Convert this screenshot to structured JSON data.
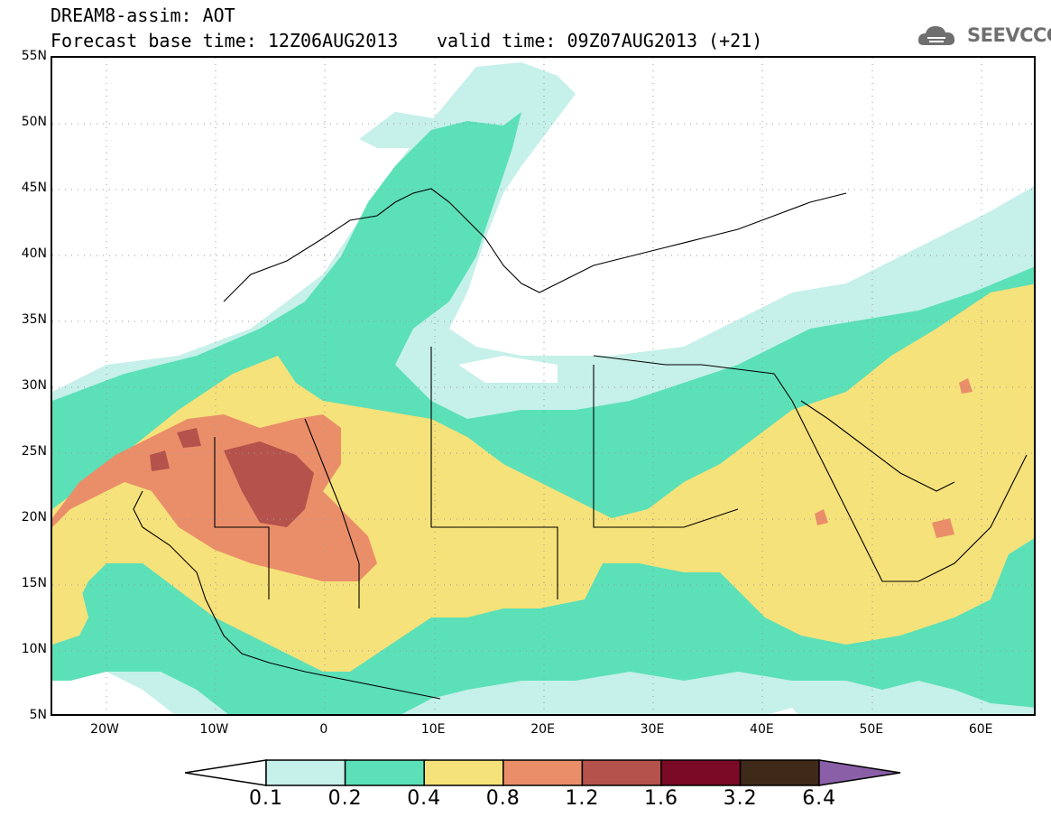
{
  "header": {
    "title": "DREAM8-assim: AOT",
    "base_time": "Forecast base time: 12Z06AUG2013",
    "valid_time": "valid time: 09Z07AUG2013 (+21)"
  },
  "logo": {
    "text": "SEEVCCC",
    "icon": "cloud-icon",
    "color": "#6f6f6f"
  },
  "map": {
    "lat_labels": [
      "55N",
      "50N",
      "45N",
      "40N",
      "35N",
      "30N",
      "25N",
      "20N",
      "15N",
      "10N",
      "5N"
    ],
    "lon_labels": [
      "20W",
      "10W",
      "0",
      "10E",
      "20E",
      "30E",
      "40E",
      "50E",
      "60E"
    ],
    "extent": {
      "lon": [
        -25,
        65
      ],
      "lat": [
        5,
        55
      ]
    }
  },
  "legend": {
    "ticks": [
      "0.1",
      "0.2",
      "0.4",
      "0.8",
      "1.2",
      "1.6",
      "3.2",
      "6.4"
    ],
    "colors": [
      "#c6f0ea",
      "#5ce0b8",
      "#f6e27a",
      "#ea8e6a",
      "#b4524b",
      "#7a0a26",
      "#3f2a1a"
    ],
    "under_color": "#ffffff",
    "over_color": "#8a5fa8"
  }
}
